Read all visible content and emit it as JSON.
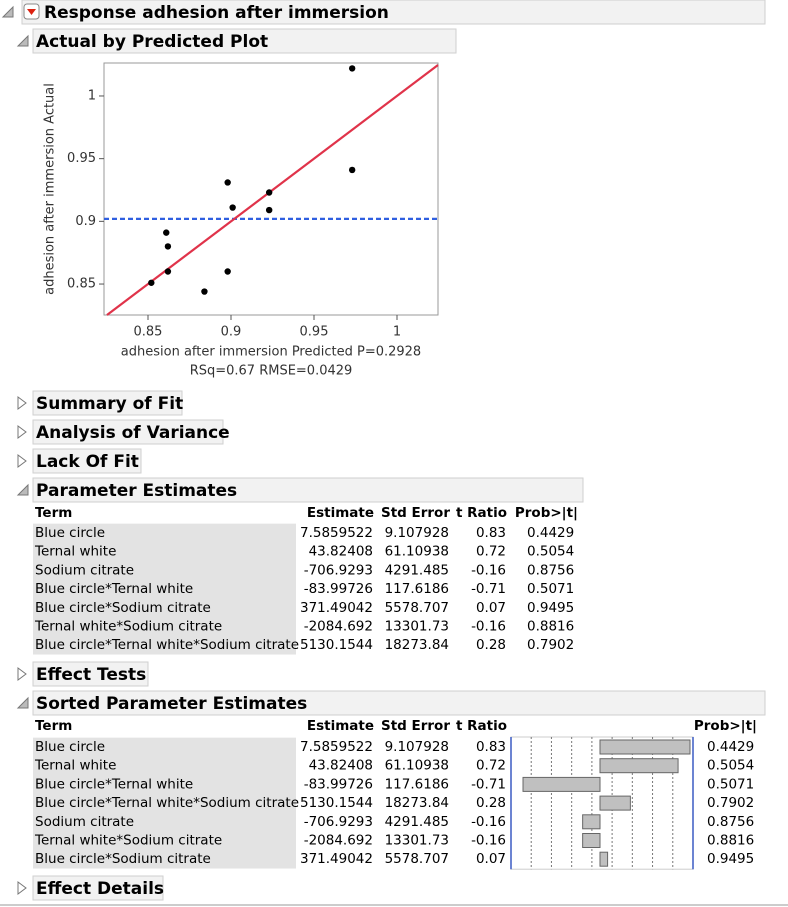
{
  "report_title": "Response adhesion after immersion",
  "chart_data": {
    "type": "scatter",
    "title": "Actual by Predicted Plot",
    "x_label": "adhesion after immersion Predicted P=0.2928",
    "annotation": "RSq=0.67 RMSE=0.0429",
    "y_label": "adhesion after immersion Actual",
    "x": [
      0.973,
      0.973,
      0.898,
      0.901,
      0.923,
      0.923,
      0.861,
      0.862,
      0.862,
      0.852,
      0.898,
      0.884
    ],
    "values": [
      1.022,
      0.941,
      0.931,
      0.911,
      0.923,
      0.909,
      0.891,
      0.88,
      0.86,
      0.851,
      0.86,
      0.844
    ],
    "color": "#000000",
    "xlim": [
      0.8235,
      1.0247
    ],
    "ylim": [
      0.8253,
      1.0263
    ],
    "xticks": [
      0.85,
      0.9,
      0.95,
      1
    ],
    "yticks": [
      0.85,
      0.9,
      0.95,
      1
    ],
    "mean": 0.902,
    "mean_color": "#2f5fe0",
    "fit_color": "#e0334a"
  },
  "collapsed": [
    "Summary of Fit",
    "Analysis of Variance",
    "Lack Of Fit"
  ],
  "parameter_estimates": {
    "title": "Parameter Estimates",
    "columns": [
      "Term",
      "Estimate",
      "Std Error",
      "t Ratio",
      "Prob>|t|"
    ],
    "rows": [
      [
        "Blue circle",
        7.5859522,
        9.107928,
        0.83,
        0.4429
      ],
      [
        "Ternal white",
        43.82408,
        61.10938,
        0.72,
        0.5054
      ],
      [
        "Sodium citrate",
        -706.9293,
        4291.485,
        -0.16,
        0.8756
      ],
      [
        "Blue circle*Ternal white",
        -83.99726,
        117.6186,
        -0.71,
        0.5071
      ],
      [
        "Blue circle*Sodium citrate",
        371.49042,
        5578.707,
        0.07,
        0.9495
      ],
      [
        "Ternal white*Sodium citrate",
        -2084.692,
        13301.73,
        -0.16,
        0.8816
      ],
      [
        "Blue circle*Ternal white*Sodium citrate",
        5130.1544,
        18273.84,
        0.28,
        0.7902
      ]
    ]
  },
  "effect_tests": "Effect Tests",
  "sorted_parameter_estimates": {
    "title": "Sorted Parameter Estimates",
    "columns": [
      "Term",
      "Estimate",
      "Std Error",
      "t Ratio",
      "Prob>|t|"
    ],
    "rows": [
      [
        "Blue circle",
        7.5859522,
        9.107928,
        0.83,
        0.4429
      ],
      [
        "Ternal white",
        43.82408,
        61.10938,
        0.72,
        0.5054
      ],
      [
        "Blue circle*Ternal white",
        -83.99726,
        117.6186,
        -0.71,
        0.5071
      ],
      [
        "Blue circle*Ternal white*Sodium citrate",
        5130.1544,
        18273.84,
        0.28,
        0.7902
      ],
      [
        "Sodium citrate",
        -706.9293,
        4291.485,
        -0.16,
        0.8756
      ],
      [
        "Ternal white*Sodium citrate",
        -2084.692,
        13301.73,
        -0.16,
        0.8816
      ],
      [
        "Blue circle*Sodium citrate",
        371.49042,
        5578.707,
        0.07,
        0.9495
      ]
    ]
  },
  "effect_details": "Effect Details"
}
